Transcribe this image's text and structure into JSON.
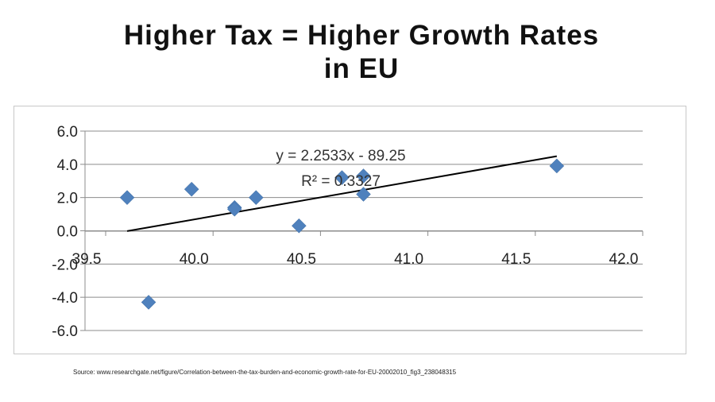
{
  "title": {
    "line1": "Higher Tax = Higher Growth Rates",
    "line2": "in EU"
  },
  "source": "Source: www.researchgate.net/figure/Correlation-between-the-tax-burden-and-economic-growth-rate-for-EU-20002010_fig3_238048315",
  "chart_data": {
    "type": "scatter",
    "title": "Higher Tax = Higher Growth Rates in EU",
    "xlabel": "",
    "ylabel": "",
    "xlim": [
      39.5,
      42.0
    ],
    "ylim": [
      -6.0,
      6.0
    ],
    "x_ticks": [
      "39.5",
      "40.0",
      "40.5",
      "41.0",
      "41.5",
      "42.0"
    ],
    "y_ticks": [
      "6.0",
      "4.0",
      "2.0",
      "0.0",
      "-2.0",
      "-4.0",
      "-6.0"
    ],
    "grid": true,
    "legend": "none",
    "series": [
      {
        "marker": "diamond",
        "color": "#4f81bd",
        "points": [
          {
            "x": 39.6,
            "y": 2.0
          },
          {
            "x": 39.7,
            "y": -4.3
          },
          {
            "x": 39.9,
            "y": 2.5
          },
          {
            "x": 40.1,
            "y": 1.4
          },
          {
            "x": 40.1,
            "y": 1.3
          },
          {
            "x": 40.2,
            "y": 2.0
          },
          {
            "x": 40.4,
            "y": 0.3
          },
          {
            "x": 40.6,
            "y": 3.2
          },
          {
            "x": 40.7,
            "y": 3.3
          },
          {
            "x": 40.7,
            "y": 2.2
          },
          {
            "x": 41.6,
            "y": 3.9
          }
        ]
      }
    ],
    "trendline": {
      "slope": 2.2533,
      "intercept": -89.25,
      "x_range": [
        39.6,
        41.6
      ],
      "color": "#000000",
      "equation": "y = 2.2533x - 89.25",
      "r_squared": "R² = 0.3327"
    }
  }
}
